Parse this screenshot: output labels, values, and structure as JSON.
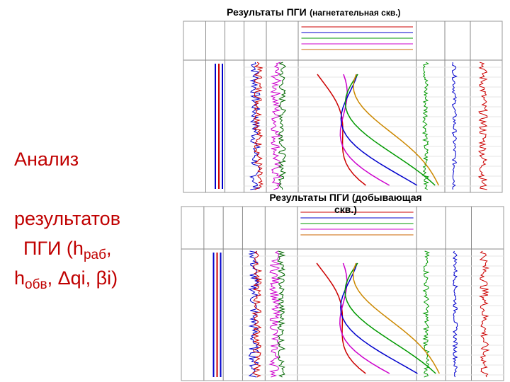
{
  "slide": {
    "title": {
      "line1": "Анализ",
      "line2": "результатов",
      "line3a": "ПГИ (h",
      "sub1": "раб",
      "line3b": ",",
      "line4a": "h",
      "sub2": "обв",
      "line4b": ", Δqi, βi)"
    },
    "panel_top": {
      "caption_main": "Результаты ПГИ",
      "caption_note": "(нагнетательная скв.)"
    },
    "panel_bottom": {
      "caption_main": "Результаты ПГИ (добывающая",
      "caption_note": "скв.)"
    }
  }
}
